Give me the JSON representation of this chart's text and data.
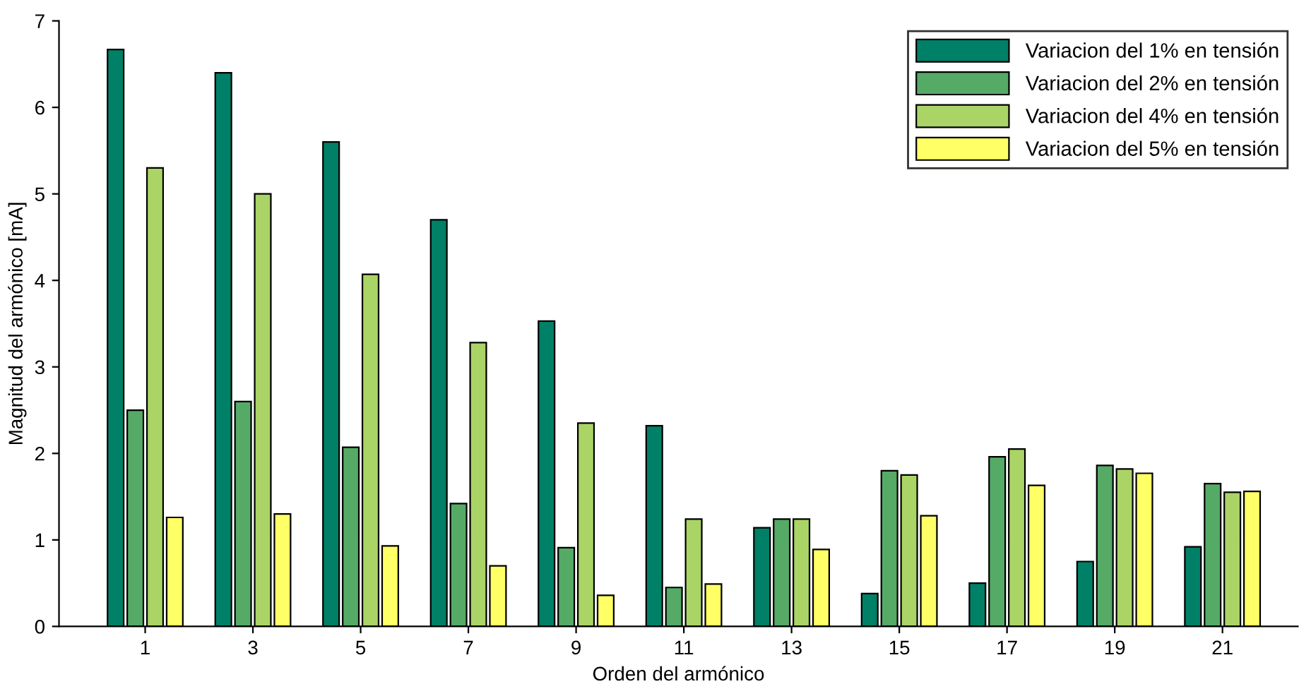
{
  "chart_data": {
    "type": "bar",
    "xlabel": "Orden del armónico",
    "ylabel": "Magnitud del armónico [mA]",
    "categories": [
      "1",
      "3",
      "5",
      "7",
      "9",
      "11",
      "13",
      "15",
      "17",
      "19",
      "21"
    ],
    "series": [
      {
        "name": "Variacion del 1% en tensión",
        "color": "#008066",
        "values": [
          6.67,
          6.4,
          5.6,
          4.7,
          3.53,
          2.32,
          1.14,
          0.38,
          0.5,
          0.75,
          0.92
        ]
      },
      {
        "name": "Variacion del 2% en tensión",
        "color": "#55aa66",
        "values": [
          2.5,
          2.6,
          2.07,
          1.42,
          0.91,
          0.45,
          1.24,
          1.8,
          1.96,
          1.86,
          1.65
        ]
      },
      {
        "name": "Variacion del 4% en tensión",
        "color": "#aad466",
        "values": [
          5.3,
          5.0,
          4.07,
          3.28,
          2.35,
          1.24,
          1.24,
          1.75,
          2.05,
          1.82,
          1.55
        ]
      },
      {
        "name": "Variacion del 5% en tensión",
        "color": "#ffff66",
        "values": [
          1.26,
          1.3,
          0.93,
          0.7,
          0.36,
          0.49,
          0.89,
          1.28,
          1.63,
          1.77,
          1.56
        ]
      }
    ],
    "ylim": [
      0,
      7
    ],
    "yticks": [
      0,
      1,
      2,
      3,
      4,
      5,
      6,
      7
    ],
    "grid": false,
    "legend": "top right"
  }
}
